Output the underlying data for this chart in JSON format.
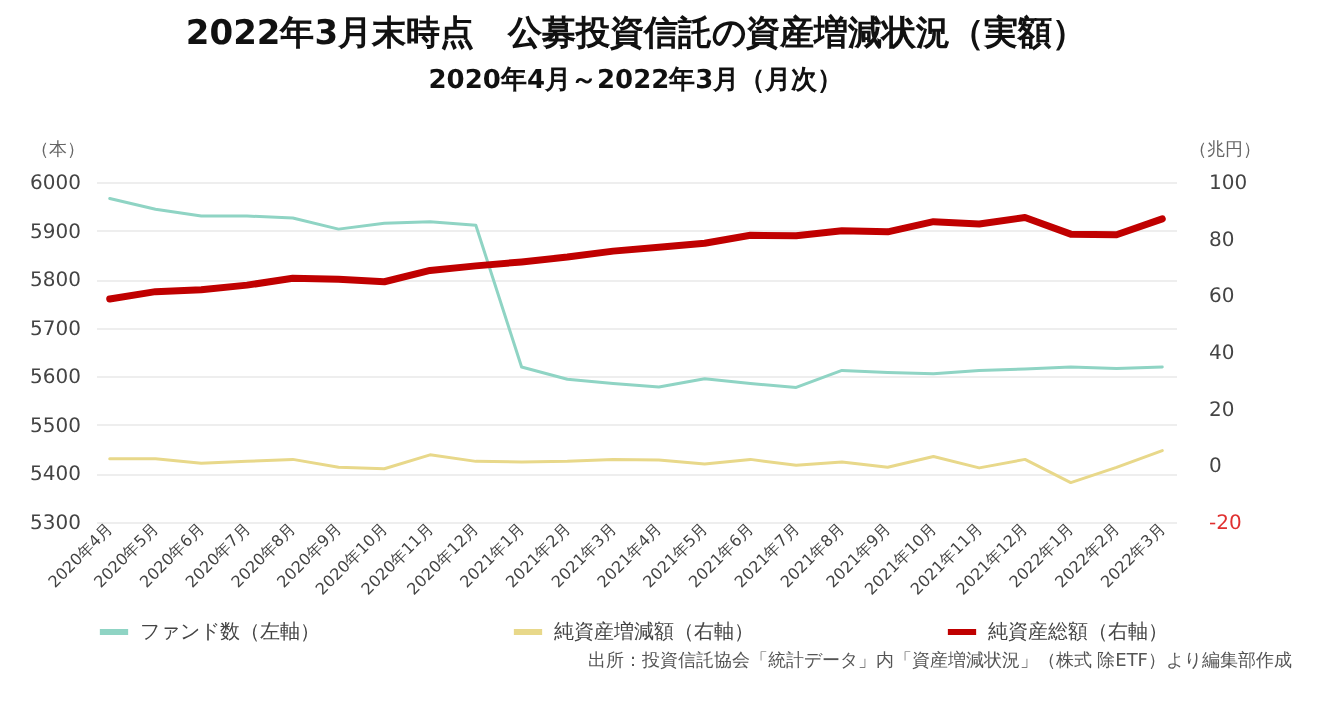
{
  "chart_data": {
    "type": "line",
    "title": "2022年3月末時点　公募投資信託の資産増減状況（実額）",
    "subtitle": "2020年4月～2022年3月（月次）",
    "ylabel": "（本）",
    "y2label": "（兆円）",
    "categories": [
      "2020年4月",
      "2020年5月",
      "2020年6月",
      "2020年7月",
      "2020年8月",
      "2020年9月",
      "2020年10月",
      "2020年11月",
      "2020年12月",
      "2021年1月",
      "2021年2月",
      "2021年3月",
      "2021年4月",
      "2021年5月",
      "2021年6月",
      "2021年7月",
      "2021年8月",
      "2021年9月",
      "2021年10月",
      "2021年11月",
      "2021年12月",
      "2022年1月",
      "2022年2月",
      "2022年3月"
    ],
    "series": [
      {
        "name": "ファンド数（左軸）",
        "color": "#8fd4c4",
        "values": [
          5966,
          5944,
          5930,
          5930,
          5926,
          5903,
          5915,
          5918,
          5911,
          5619,
          5594,
          5585,
          5578,
          5595,
          5585,
          5577,
          5612,
          5608,
          5605,
          5612,
          5615,
          5619,
          5616,
          5619
        ]
      },
      {
        "name": "純資産増減額（右軸）",
        "color": "#e8d88a",
        "axis": "y2",
        "values": [
          2.3,
          2.3,
          0.7,
          1.4,
          2.1,
          -0.7,
          -1.2,
          3.7,
          1.4,
          1.2,
          1.4,
          2.1,
          1.9,
          0.5,
          2.1,
          0,
          1.2,
          -0.7,
          3.1,
          -0.9,
          2.1,
          -6.1,
          -0.7,
          5.2
        ]
      },
      {
        "name": "純資産総額（右軸）",
        "color": "#c00000",
        "axis": "y2",
        "values": [
          58.7,
          61.3,
          62,
          63.6,
          66,
          65.7,
          64.8,
          68.8,
          70.4,
          71.8,
          73.5,
          75.6,
          77,
          78.4,
          81.2,
          81,
          82.8,
          82.4,
          86,
          85.2,
          87.5,
          81.6,
          81.4,
          87
        ]
      }
    ],
    "ylim": [
      5300,
      6000
    ],
    "yticks": [
      5300,
      5400,
      5500,
      5600,
      5700,
      5800,
      5900,
      6000
    ],
    "y2lim": [
      -20,
      100
    ],
    "y2ticks": [
      -20,
      0,
      20,
      40,
      60,
      80,
      100
    ],
    "grid": "y",
    "legend": "bottom",
    "annotations": [
      "出所：投資信託協会「統計データ」内「資産増減状況」（株式 除ETF）より編集部作成"
    ]
  }
}
